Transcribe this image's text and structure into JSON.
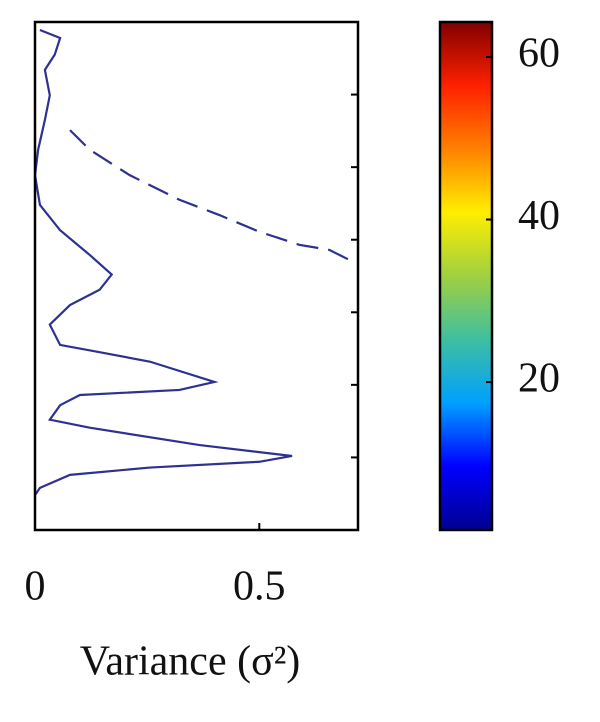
{
  "chart_data": [
    {
      "type": "line",
      "xlabel": "Variance (σ²)",
      "xlim": [
        0,
        0.72
      ],
      "xticks": [
        0,
        0.5
      ],
      "ylim": [
        0,
        7
      ],
      "yticks": [
        1,
        2,
        3,
        4,
        5,
        6
      ],
      "y_inverted": true,
      "series": [
        {
          "color": "#2e3192",
          "linestyle": "solid",
          "values": [
            0.011,
            0.056,
            0.044,
            0.022,
            0.033,
            0.022,
            0.007,
            0.0,
            0.011,
            0.056,
            0.122,
            0.171,
            0.144,
            0.078,
            0.033,
            0.056,
            0.144,
            0.256,
            0.4,
            0.322,
            0.1,
            0.056,
            0.033,
            0.122,
            0.367,
            0.573,
            0.5,
            0.256,
            0.078,
            0.011,
            0.0
          ],
          "y": [
            0.11,
            0.22,
            0.45,
            0.66,
            1.01,
            1.35,
            1.76,
            2.11,
            2.52,
            2.87,
            3.21,
            3.48,
            3.69,
            3.9,
            4.17,
            4.45,
            4.55,
            4.68,
            4.96,
            5.07,
            5.14,
            5.28,
            5.48,
            5.59,
            5.83,
            5.98,
            6.06,
            6.14,
            6.24,
            6.42,
            6.52
          ]
        },
        {
          "color": "#2e3192",
          "linestyle": "dashed",
          "values": [
            0.078,
            0.122,
            0.211,
            0.322,
            0.411,
            0.5,
            0.589,
            0.656,
            0.711
          ],
          "y": [
            1.49,
            1.76,
            2.11,
            2.45,
            2.66,
            2.89,
            3.07,
            3.14,
            3.31
          ]
        }
      ]
    },
    {
      "type": "colorbar",
      "colormap": "jet",
      "ylim": [
        1.8,
        64.3
      ],
      "yticks": [
        20,
        40,
        60
      ]
    }
  ]
}
